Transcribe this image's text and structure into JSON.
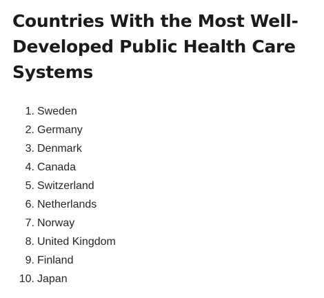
{
  "article": {
    "title": "Countries With the Most Well-Developed Public Health Care Systems",
    "items": [
      {
        "number": "1.",
        "label": "Sweden"
      },
      {
        "number": "2.",
        "label": "Germany"
      },
      {
        "number": "3.",
        "label": "Denmark"
      },
      {
        "number": "4.",
        "label": "Canada"
      },
      {
        "number": "5.",
        "label": "Switzerland"
      },
      {
        "number": "6.",
        "label": "Netherlands"
      },
      {
        "number": "7.",
        "label": "Norway"
      },
      {
        "number": "8.",
        "label": "United Kingdom"
      },
      {
        "number": "9.",
        "label": "Finland"
      },
      {
        "number": "10.",
        "label": "Japan"
      }
    ]
  }
}
